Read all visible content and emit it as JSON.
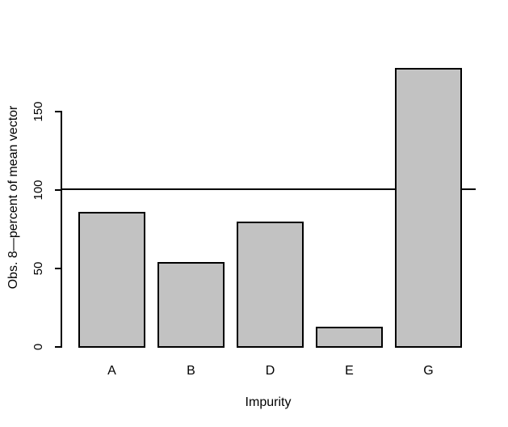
{
  "chart_data": {
    "type": "bar",
    "title": "",
    "categories": [
      "A",
      "B",
      "D",
      "E",
      "G"
    ],
    "values": [
      86,
      54,
      80,
      13,
      178
    ],
    "xlabel": "Impurity",
    "ylabel": "Obs. 8—percent of mean vector",
    "yticks": [
      0,
      50,
      100,
      150
    ],
    "ylim": [
      0,
      190
    ],
    "reference_line_y": 100,
    "grid": false,
    "legend": false,
    "colors": {
      "bar_fill": "#c2c2c2",
      "bar_border": "#000000",
      "axis": "#000000",
      "text": "#000000",
      "background": "#ffffff"
    }
  }
}
